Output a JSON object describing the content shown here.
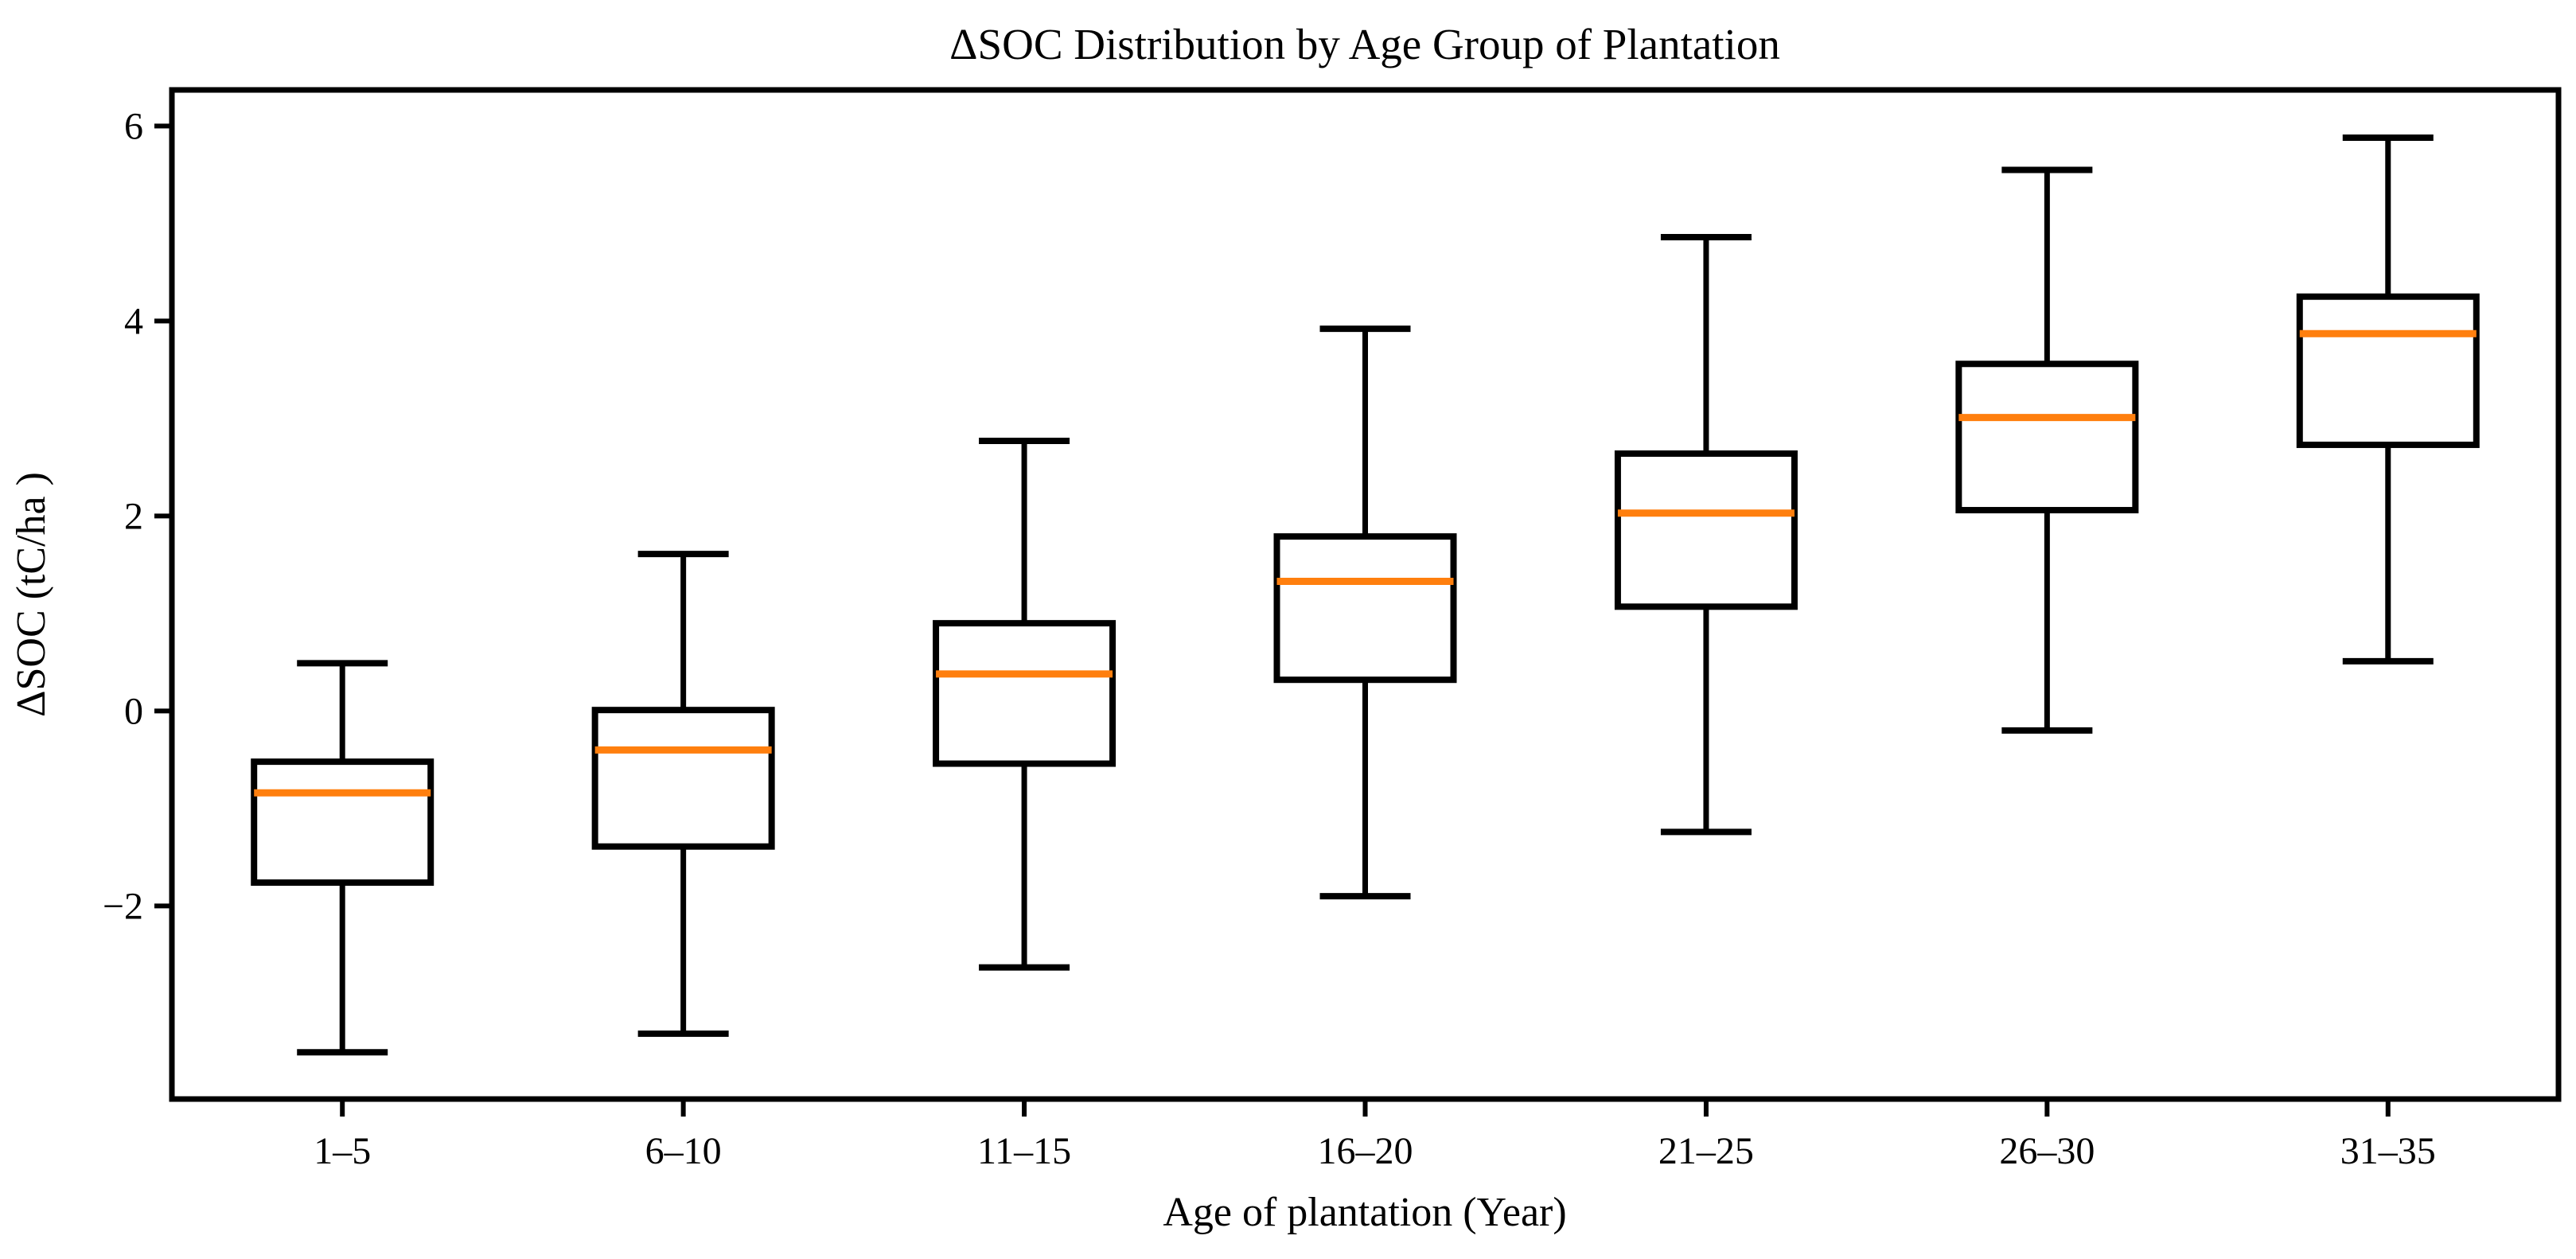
{
  "chart_data": {
    "type": "boxplot",
    "title": "ΔSOC Distribution by Age Group of Plantation",
    "xlabel": "Age of plantation (Year)",
    "ylabel": "ΔSOC (tC/ha )",
    "categories": [
      "1–5",
      "6–10",
      "11–15",
      "16–20",
      "21–25",
      "26–30",
      "31–35"
    ],
    "boxes": [
      {
        "label": "1–5",
        "whislo": -3.5,
        "q1": -1.76,
        "med": -0.84,
        "q3": -0.52,
        "whishi": 0.49
      },
      {
        "label": "6–10",
        "whislo": -3.31,
        "q1": -1.39,
        "med": -0.4,
        "q3": 0.01,
        "whishi": 1.61
      },
      {
        "label": "11–15",
        "whislo": -2.63,
        "q1": -0.54,
        "med": 0.38,
        "q3": 0.9,
        "whishi": 2.77
      },
      {
        "label": "16–20",
        "whislo": -1.9,
        "q1": 0.32,
        "med": 1.33,
        "q3": 1.79,
        "whishi": 3.92
      },
      {
        "label": "21–25",
        "whislo": -1.24,
        "q1": 1.07,
        "med": 2.03,
        "q3": 2.64,
        "whishi": 4.86
      },
      {
        "label": "26–30",
        "whislo": -0.2,
        "q1": 2.06,
        "med": 3.01,
        "q3": 3.56,
        "whishi": 5.55
      },
      {
        "label": "31–35",
        "whislo": 0.51,
        "q1": 2.73,
        "med": 3.87,
        "q3": 4.25,
        "whishi": 5.88
      }
    ],
    "yticks": [
      -2,
      0,
      2,
      4,
      6
    ],
    "ytick_labels": [
      "−2",
      "0",
      "2",
      "4",
      "6"
    ],
    "ylim": [
      -3.98,
      6.37
    ],
    "grid": false,
    "legend_position": null,
    "colors": {
      "box_stroke": "#000000",
      "box_fill": "#ffffff",
      "median": "#ff7f0e",
      "background": "#ffffff"
    }
  }
}
